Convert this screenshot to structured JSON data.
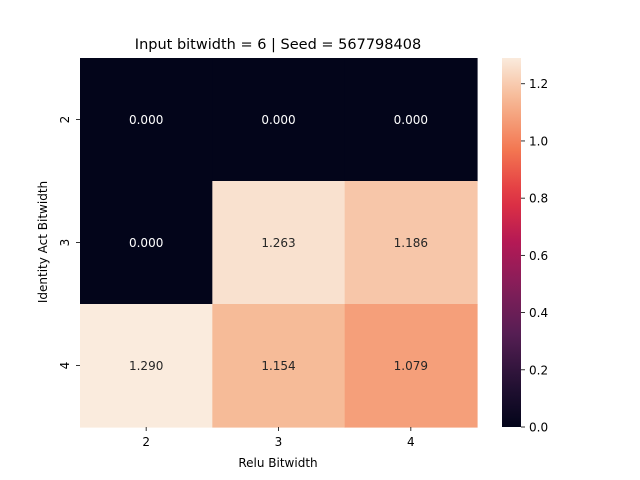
{
  "chart_data": {
    "type": "heatmap",
    "title": "Input bitwidth = 6 | Seed = 567798408",
    "xlabel": "Relu Bitwidth",
    "ylabel": "Identity Act Bitwidth",
    "x_categories": [
      "2",
      "3",
      "4"
    ],
    "y_categories": [
      "2",
      "3",
      "4"
    ],
    "values": [
      [
        0.0,
        0.0,
        0.0
      ],
      [
        0.0,
        1.263,
        1.186
      ],
      [
        1.29,
        1.154,
        1.079
      ]
    ],
    "annotations": [
      [
        "0.000",
        "0.000",
        "0.000"
      ],
      [
        "0.000",
        "1.263",
        "1.186"
      ],
      [
        "1.290",
        "1.154",
        "1.079"
      ]
    ],
    "colormap": "rocket",
    "vmin": 0.0,
    "vmax": 1.29,
    "colorbar_ticks": [
      "0.0",
      "0.2",
      "0.4",
      "0.6",
      "0.8",
      "1.0",
      "1.2"
    ],
    "colorbar_tick_values": [
      0.0,
      0.2,
      0.4,
      0.6,
      0.8,
      1.0,
      1.2
    ],
    "grid": false
  }
}
